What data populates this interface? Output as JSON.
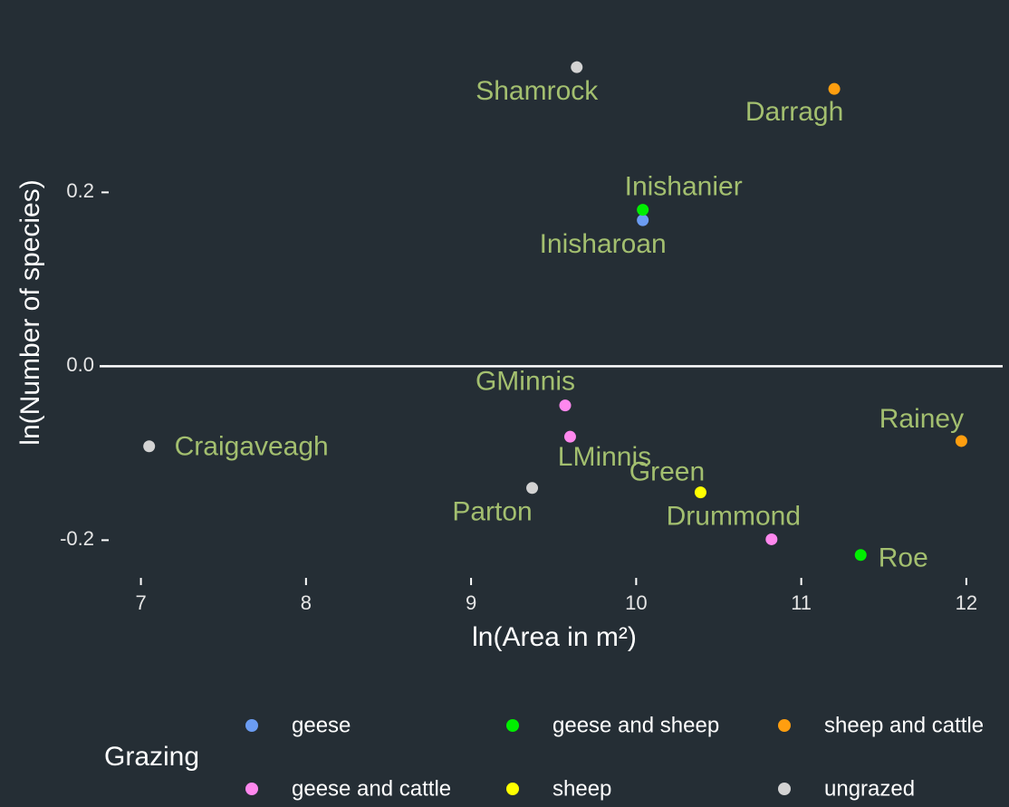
{
  "chart_data": {
    "type": "scatter",
    "x_label": "ln(Area in m²)",
    "y_label": "ln(Number of species)",
    "xlim": [
      6.75,
      12.22
    ],
    "ylim": [
      -0.235,
      0.39
    ],
    "xticks": [
      7,
      8,
      9,
      10,
      11,
      12
    ],
    "yticks": [
      -0.2,
      {
        "value": 0,
        "label": "0.0"
      },
      0.2
    ],
    "hline": 0,
    "legend_title": "Grazing",
    "legend_position": "bottom",
    "series": [
      {
        "name": "geese",
        "color": "#6b9cf2",
        "x": [
          10.04
        ],
        "values": [
          0.168
        ],
        "labels": [
          "Inisharoan"
        ]
      },
      {
        "name": "geese and sheep",
        "color": "#00ee00",
        "x": [
          10.04,
          11.36
        ],
        "values": [
          0.18,
          -0.217
        ],
        "labels": [
          "Inishanier",
          "Roe"
        ]
      },
      {
        "name": "sheep and cattle",
        "color": "#ff9e0f",
        "x": [
          11.2,
          11.97
        ],
        "values": [
          0.319,
          -0.086
        ],
        "labels": [
          "Darragh",
          "Rainey"
        ]
      },
      {
        "name": "geese and cattle",
        "color": "#ff88ee",
        "x": [
          9.57,
          9.6,
          10.82
        ],
        "values": [
          -0.045,
          -0.081,
          -0.199
        ],
        "labels": [
          "GMinnis",
          "LMinnis",
          "Drummond"
        ]
      },
      {
        "name": "sheep",
        "color": "#ffff00",
        "x": [
          10.39
        ],
        "values": [
          -0.145
        ],
        "labels": [
          "Green"
        ]
      },
      {
        "name": "ungrazed",
        "color": "#d3d3d3",
        "x": [
          9.64,
          7.05,
          9.37
        ],
        "values": [
          0.344,
          -0.092,
          -0.14
        ],
        "labels": [
          "Shamrock",
          "Craigaveagh",
          "Parton"
        ]
      }
    ]
  }
}
